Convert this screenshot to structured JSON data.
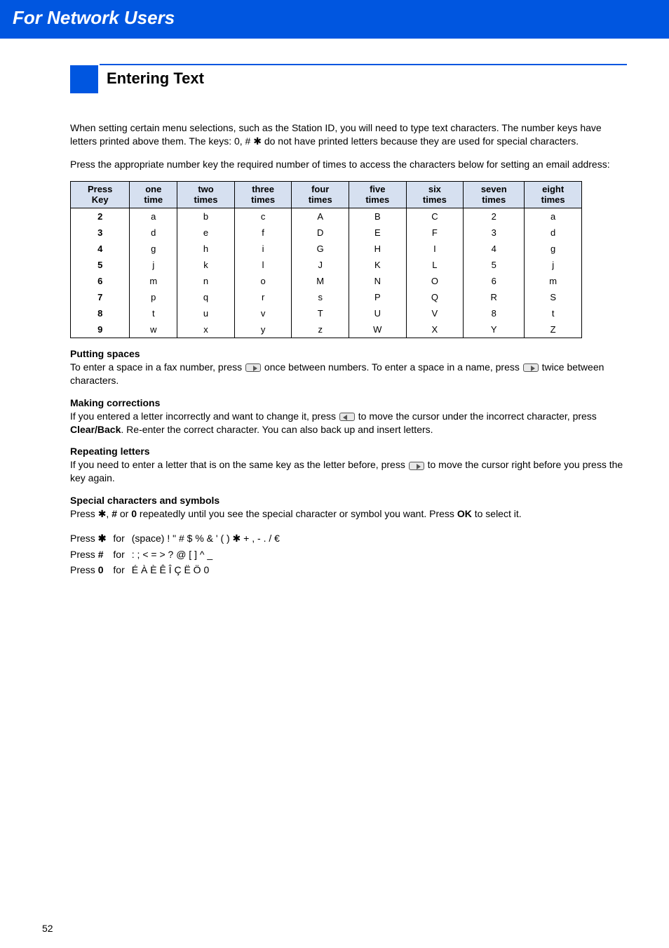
{
  "header": {
    "title": "For Network Users"
  },
  "section": {
    "title": "Entering Text"
  },
  "intro": {
    "p1_a": "When setting certain menu selections, such as the Station ID, you will need to type text characters. The number keys have letters printed above them. The keys: 0, # ",
    "p1_b": " do not have printed letters because they are used for special characters.",
    "p2": "Press the appropriate number key the required number of times to access the characters below for setting an email address:"
  },
  "table": {
    "columns": [
      "Press Key",
      "one time",
      "two times",
      "three times",
      "four times",
      "five times",
      "six times",
      "seven times",
      "eight times"
    ],
    "rows": [
      [
        "2",
        "a",
        "b",
        "c",
        "A",
        "B",
        "C",
        "2",
        "a"
      ],
      [
        "3",
        "d",
        "e",
        "f",
        "D",
        "E",
        "F",
        "3",
        "d"
      ],
      [
        "4",
        "g",
        "h",
        "i",
        "G",
        "H",
        "I",
        "4",
        "g"
      ],
      [
        "5",
        "j",
        "k",
        "l",
        "J",
        "K",
        "L",
        "5",
        "j"
      ],
      [
        "6",
        "m",
        "n",
        "o",
        "M",
        "N",
        "O",
        "6",
        "m"
      ],
      [
        "7",
        "p",
        "q",
        "r",
        "s",
        "P",
        "Q",
        "R",
        "S"
      ],
      [
        "8",
        "t",
        "u",
        "v",
        "T",
        "U",
        "V",
        "8",
        "t"
      ],
      [
        "9",
        "w",
        "x",
        "y",
        "z",
        "W",
        "X",
        "Y",
        "Z"
      ]
    ]
  },
  "sections": {
    "spaces": {
      "h": "Putting spaces",
      "a": "To enter a space in a fax number, press ",
      "b": " once between numbers. To enter a space in a name, press ",
      "c": " twice between characters."
    },
    "corrections": {
      "h": "Making corrections",
      "a": "If you entered a letter incorrectly and want to change it, press ",
      "b": " to move the cursor under the incorrect character, press ",
      "clear": "Clear/Back",
      "c": ". Re-enter the correct character. You can also back up and insert letters."
    },
    "repeating": {
      "h": "Repeating letters",
      "a": "If you need to enter a letter that is on the same key as the letter before, press ",
      "b": " to move the cursor right before you press the key again."
    },
    "special": {
      "h": "Special characters and symbols",
      "a": "Press ",
      "b": ", ",
      "hash": "#",
      "c": " or ",
      "zero": "0",
      "d": " repeatedly until you see the special character or symbol you want. Press ",
      "ok": "OK",
      "e": " to select it."
    }
  },
  "special_table": {
    "rows": [
      {
        "press": "Press ",
        "key": "✱",
        "for": "for",
        "chars_a": "(space) ! \" # $ % & ' ( ) ",
        "chars_star": "✱",
        "chars_b": " + , - . / €"
      },
      {
        "press": "Press ",
        "key": "#",
        "for": "for",
        "chars_a": ": ; < = > ? @ [ ] ^ _",
        "chars_star": "",
        "chars_b": ""
      },
      {
        "press": "Press ",
        "key": "0",
        "for": "for",
        "chars_a": "É À È Ê Î Ç Ë Ö 0",
        "chars_star": "",
        "chars_b": ""
      }
    ]
  },
  "star_glyph": "✱",
  "page_number": "52"
}
